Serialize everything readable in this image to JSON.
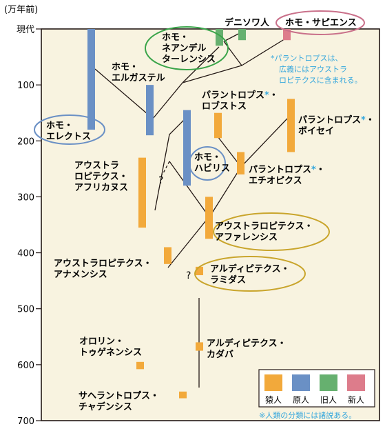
{
  "axis": {
    "unit_label": "(万年前)",
    "ticks": [
      {
        "value": 0,
        "label": "現代"
      },
      {
        "value": 100,
        "label": "100"
      },
      {
        "value": 200,
        "label": "200"
      },
      {
        "value": 300,
        "label": "300"
      },
      {
        "value": 400,
        "label": "400"
      },
      {
        "value": 500,
        "label": "500"
      },
      {
        "value": 600,
        "label": "600"
      },
      {
        "value": 700,
        "label": "700"
      }
    ],
    "min": 0,
    "max": 700
  },
  "colors": {
    "background": "#f8f3e0",
    "frame": "#231815",
    "ape_man": "#f2a93b",
    "proto_human": "#6a90c5",
    "archaic_human": "#66b06f",
    "modern_human": "#dd7c8b",
    "ellipse_blue": "#6a90c5",
    "ellipse_green": "#3aa449",
    "ellipse_gold": "#c9a52c",
    "ellipse_pink": "#c9708a",
    "note_cyan": "#35a7dd"
  },
  "species": [
    {
      "id": "erectus",
      "label_lines": [
        "ホモ・",
        "エレクトス"
      ],
      "category": "proto_human",
      "start": 180,
      "end": 0
    },
    {
      "id": "ergaster",
      "label_lines": [
        "ホモ・",
        "エルガステル"
      ],
      "category": "proto_human",
      "start": 190,
      "end": 100
    },
    {
      "id": "habilis",
      "label_lines": [
        "ホモ・",
        "ハビリス"
      ],
      "category": "proto_human",
      "start": 280,
      "end": 145
    },
    {
      "id": "neanderthal",
      "label_lines": [
        "ホモ・",
        "ネアンデル",
        "ターレンシス"
      ],
      "category": "archaic_human",
      "start": 30,
      "end": 0
    },
    {
      "id": "denisovan",
      "label_lines": [
        "デニソワ人"
      ],
      "category": "archaic_human",
      "start": 20,
      "end": 0
    },
    {
      "id": "sapiens",
      "label_lines": [
        "ホモ・サピエンス"
      ],
      "category": "modern_human",
      "start": 20,
      "end": 0
    },
    {
      "id": "africanus",
      "label_lines": [
        "アウストラ",
        "ロピテクス・",
        "アフリカヌス"
      ],
      "category": "ape_man",
      "start": 355,
      "end": 230
    },
    {
      "id": "afarensis",
      "label_lines": [
        "アウストラロピテクス・",
        "アファレンシス"
      ],
      "category": "ape_man",
      "start": 375,
      "end": 300
    },
    {
      "id": "anamensis",
      "label_lines": [
        "アウストラロピテクス・",
        "アナメンシス"
      ],
      "category": "ape_man",
      "start": 420,
      "end": 390
    },
    {
      "id": "robustus",
      "label_lines": [
        "パラントロプス*・",
        "ロブストス"
      ],
      "category": "ape_man",
      "start": 195,
      "end": 150
    },
    {
      "id": "aethiopicus",
      "label_lines": [
        "パラントロプス*・",
        "エチオピクス"
      ],
      "category": "ape_man",
      "start": 260,
      "end": 220
    },
    {
      "id": "boisei",
      "label_lines": [
        "パラントロプス*・",
        "ボイセイ"
      ],
      "category": "ape_man",
      "start": 220,
      "end": 125
    },
    {
      "id": "ramidus",
      "label_lines": [
        "アルディピテクス・",
        "ラミダス"
      ],
      "category": "ape_man",
      "start": 440,
      "end": 425
    },
    {
      "id": "kadabba",
      "label_lines": [
        "アルディピテクス・",
        "カダバ"
      ],
      "category": "ape_man",
      "start": 575,
      "end": 560
    },
    {
      "id": "tugenensis",
      "label_lines": [
        "オロリン・",
        "トゥゲネンシス"
      ],
      "category": "ape_man",
      "start": 608,
      "end": 595
    },
    {
      "id": "tchadensis",
      "label_lines": [
        "サヘラントロプス・",
        "チャデンシス"
      ],
      "category": "ape_man",
      "start": 660,
      "end": 648
    }
  ],
  "question_marks": [
    "?",
    "?"
  ],
  "note_paranthropus": {
    "lines": [
      "*パラントロプスは、",
      "広義にはアウストラ",
      "ロピテクスに含まれる。"
    ]
  },
  "legend": {
    "items": [
      {
        "category": "ape_man",
        "label": "猿人"
      },
      {
        "category": "proto_human",
        "label": "原人"
      },
      {
        "category": "archaic_human",
        "label": "旧人"
      },
      {
        "category": "modern_human",
        "label": "新人"
      }
    ]
  },
  "footnote": "※人類の分類には諸説ある。"
}
